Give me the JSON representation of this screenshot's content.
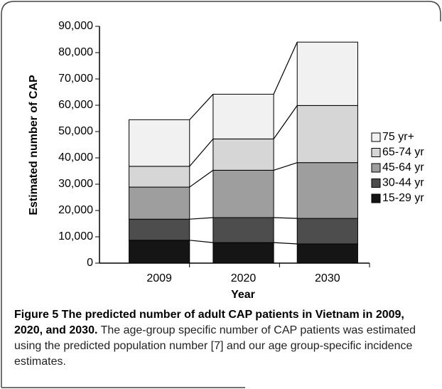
{
  "chart_data": {
    "type": "stacked_bar",
    "ylabel": "Estimated number of CAP",
    "xlabel": "Year",
    "categories": [
      "2009",
      "2020",
      "2030"
    ],
    "series": [
      {
        "name": "15-29 yr",
        "color": "#151515",
        "values": [
          8700,
          7800,
          7300
        ]
      },
      {
        "name": "30-44 yr",
        "color": "#4d4d4d",
        "values": [
          8000,
          9500,
          9700
        ]
      },
      {
        "name": "45-64 yr",
        "color": "#9e9e9e",
        "values": [
          12200,
          18000,
          21200
        ]
      },
      {
        "name": "65-74 yr",
        "color": "#d6d6d6",
        "values": [
          7900,
          11900,
          21700
        ]
      },
      {
        "name": "75 yr+",
        "color": "#f1f1f1",
        "values": [
          17700,
          17000,
          24100
        ]
      }
    ],
    "ylim": [
      0,
      90000
    ],
    "yticks": [
      {
        "value": 0,
        "label": "0"
      },
      {
        "value": 10000,
        "label": "10,000"
      },
      {
        "value": 20000,
        "label": "20,000"
      },
      {
        "value": 30000,
        "label": "30,000"
      },
      {
        "value": 40000,
        "label": "40,000"
      },
      {
        "value": 50000,
        "label": "50,000"
      },
      {
        "value": 60000,
        "label": "60,000"
      },
      {
        "value": 70000,
        "label": "70,000"
      },
      {
        "value": 80000,
        "label": "80,000"
      },
      {
        "value": 90000,
        "label": "90,000"
      }
    ],
    "legend": "right"
  },
  "caption": {
    "title": "Figure 5 The predicted number of adult CAP patients in Vietnam in 2009, 2020, and 2030.",
    "text": "The age-group specific number of CAP patients was estimated using the predicted population number [7] and our age group-specific incidence estimates."
  }
}
